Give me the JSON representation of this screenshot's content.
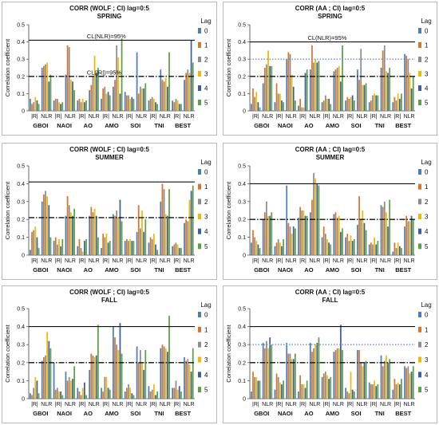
{
  "chart_data": [
    {
      "type": "bar",
      "title": "CORR (WOLF ; CI) lag=0:5",
      "subtitle": "SPRING",
      "ylabel": "Correlation coefficient",
      "ylim": [
        0,
        0.5
      ],
      "yticks": [
        "0",
        "0.1",
        "0.2",
        "0.3",
        "0.4",
        "0.5"
      ],
      "categories": [
        "|R|",
        "NLR",
        "|R|",
        "NLR",
        "|R|",
        "NLR",
        "|R|",
        "NLR",
        "|R|",
        "NLR",
        "|R|",
        "NLR",
        "|R|",
        "NLR"
      ],
      "groups": [
        "GBOI",
        "NAOI",
        "AO",
        "AMO",
        "SOI",
        "TNI",
        "BEST"
      ],
      "legend_title": "Lag",
      "thresholds": [
        {
          "label": "CL(NLR)=95%",
          "value": 0.41,
          "style": "solid"
        },
        {
          "label": "CL(|R|)=95%",
          "value": 0.2,
          "style": "dashdot"
        }
      ],
      "series": [
        {
          "name": "0",
          "values": [
            0.07,
            0.25,
            0.06,
            0.21,
            0.06,
            0.12,
            0.07,
            0.14,
            0.11,
            0.34,
            0.06,
            0.24,
            0.06,
            0.18
          ]
        },
        {
          "name": "1",
          "values": [
            0.04,
            0.26,
            0.07,
            0.38,
            0.07,
            0.15,
            0.13,
            0.18,
            0.09,
            0.1,
            0.07,
            0.18,
            0.05,
            0.22
          ]
        },
        {
          "name": "2",
          "values": [
            0.05,
            0.27,
            0.07,
            0.37,
            0.05,
            0.2,
            0.14,
            0.38,
            0.09,
            0.14,
            0.08,
            0.17,
            0.07,
            0.24
          ]
        },
        {
          "name": "3",
          "values": [
            0.08,
            0.28,
            0.05,
            0.18,
            0.07,
            0.32,
            0.1,
            0.31,
            0.07,
            0.13,
            0.07,
            0.19,
            0.06,
            0.22
          ]
        },
        {
          "name": "4",
          "values": [
            0.06,
            0.17,
            0.04,
            0.17,
            0.05,
            0.22,
            0.11,
            0.1,
            0.08,
            0.13,
            0.05,
            0.14,
            0.04,
            0.41
          ]
        },
        {
          "name": "5",
          "values": [
            0.04,
            0.21,
            0.05,
            0.12,
            0.06,
            0.25,
            0.09,
            0.42,
            0.07,
            0.16,
            0.04,
            0.34,
            0.04,
            0.28
          ]
        }
      ]
    },
    {
      "type": "bar",
      "title": "CORR (AA ; CI) lag=0:5",
      "subtitle": "SPRING",
      "ylabel": "Correlation coefficient",
      "ylim": [
        0,
        0.5
      ],
      "yticks": [
        "0",
        "0.1",
        "0.2",
        "0.3",
        "0.4",
        "0.5"
      ],
      "categories": [
        "|R|",
        "NLR",
        "|R|",
        "NLR",
        "|R|",
        "NLR",
        "|R|",
        "NLR",
        "|R|",
        "NLR",
        "|R|",
        "NLR",
        "|R|",
        "NLR"
      ],
      "groups": [
        "GBOI",
        "NAOI",
        "AO",
        "AMO",
        "SOI",
        "TNI",
        "BEST"
      ],
      "legend_title": "Lag",
      "thresholds": [
        {
          "label": "CL(NLR)=95%",
          "value": 0.4,
          "style": "solid"
        },
        {
          "label": "",
          "value": 0.3,
          "style": "dotted"
        },
        {
          "label": "",
          "value": 0.2,
          "style": "dashdot"
        }
      ],
      "series": [
        {
          "name": "0",
          "values": [
            0.04,
            0.16,
            0.05,
            0.3,
            0.03,
            0.24,
            0.05,
            0.23,
            0.06,
            0.24,
            0.05,
            0.25,
            0.05,
            0.33
          ]
        },
        {
          "name": "1",
          "values": [
            0.13,
            0.25,
            0.16,
            0.34,
            0.07,
            0.38,
            0.06,
            0.24,
            0.08,
            0.18,
            0.06,
            0.35,
            0.08,
            0.32
          ]
        },
        {
          "name": "2",
          "values": [
            0.08,
            0.27,
            0.1,
            0.33,
            0.02,
            0.28,
            0.09,
            0.25,
            0.07,
            0.36,
            0.09,
            0.38,
            0.06,
            0.3
          ]
        },
        {
          "name": "3",
          "values": [
            0.11,
            0.35,
            0.1,
            0.21,
            0.02,
            0.3,
            0.07,
            0.26,
            0.08,
            0.15,
            0.1,
            0.23,
            0.1,
            0.22
          ]
        },
        {
          "name": "4",
          "values": [
            0.05,
            0.26,
            0.06,
            0.14,
            0.22,
            0.28,
            0.07,
            0.17,
            0.09,
            0.15,
            0.09,
            0.22,
            0.07,
            0.13
          ]
        },
        {
          "name": "5",
          "values": [
            0.02,
            0.26,
            0.05,
            0.06,
            0.24,
            0.29,
            0.04,
            0.38,
            0.06,
            0.16,
            0.09,
            0.25,
            0.1,
            0.2
          ]
        }
      ]
    },
    {
      "type": "bar",
      "title": "CORR (WOLF ; CI) lag=0:5",
      "subtitle": "SUMMER",
      "ylabel": "Correlation coefficient",
      "ylim": [
        0,
        0.5
      ],
      "yticks": [
        "0",
        "0.1",
        "0.2",
        "0.3",
        "0.4",
        "0.5"
      ],
      "categories": [
        "|R|",
        "NLR",
        "|R|",
        "NLR",
        "|R|",
        "NLR",
        "|R|",
        "NLR",
        "|R|",
        "NLR",
        "|R|",
        "NLR",
        "|R|",
        "NLR"
      ],
      "groups": [
        "GBOI",
        "NAOI",
        "AO",
        "AMO",
        "SOI",
        "TNI",
        "BEST"
      ],
      "legend_title": "Lag",
      "thresholds": [
        {
          "label": "",
          "value": 0.41,
          "style": "solid"
        },
        {
          "label": "",
          "value": 0.21,
          "style": "dashdot"
        }
      ],
      "series": [
        {
          "name": "0",
          "values": [
            0.03,
            0.3,
            0.08,
            0.22,
            0.05,
            0.22,
            0.04,
            0.23,
            0.08,
            0.13,
            0.07,
            0.3,
            0.05,
            0.18
          ]
        },
        {
          "name": "1",
          "values": [
            0.13,
            0.34,
            0.1,
            0.33,
            0.09,
            0.27,
            0.12,
            0.22,
            0.09,
            0.28,
            0.1,
            0.4,
            0.06,
            0.2
          ]
        },
        {
          "name": "2",
          "values": [
            0.14,
            0.36,
            0.06,
            0.28,
            0.04,
            0.24,
            0.1,
            0.25,
            0.08,
            0.15,
            0.09,
            0.37,
            0.07,
            0.19
          ]
        },
        {
          "name": "3",
          "values": [
            0.16,
            0.33,
            0.09,
            0.24,
            0.02,
            0.26,
            0.12,
            0.21,
            0.09,
            0.25,
            0.12,
            0.23,
            0.06,
            0.31
          ]
        },
        {
          "name": "4",
          "values": [
            0.1,
            0.28,
            0.05,
            0.22,
            0.08,
            0.22,
            0.07,
            0.31,
            0.08,
            0.13,
            0.06,
            0.22,
            0.04,
            0.36
          ]
        },
        {
          "name": "5",
          "values": [
            0.04,
            0.1,
            0.09,
            0.26,
            0.09,
            0.1,
            0.08,
            0.19,
            0.08,
            0.2,
            0.03,
            0.37,
            0.04,
            0.39
          ]
        }
      ]
    },
    {
      "type": "bar",
      "title": "CORR (AA ; CI) lag=0:5",
      "subtitle": "SUMMER",
      "ylabel": "Correlation coefficient",
      "ylim": [
        0,
        0.5
      ],
      "yticks": [
        "0",
        "0.1",
        "0.2",
        "0.3",
        "0.4",
        "0.5"
      ],
      "categories": [
        "|R|",
        "NLR",
        "|R|",
        "NLR",
        "|R|",
        "NLR",
        "|R|",
        "NLR",
        "|R|",
        "NLR",
        "|R|",
        "NLR",
        "|R|",
        "NLR"
      ],
      "groups": [
        "GBOI",
        "NAOI",
        "AO",
        "AMO",
        "SOI",
        "TNI",
        "BEST"
      ],
      "legend_title": "Lag",
      "thresholds": [
        {
          "label": "",
          "value": 0.4,
          "style": "solid"
        },
        {
          "label": "",
          "value": 0.2,
          "style": "dashdot"
        }
      ],
      "series": [
        {
          "name": "0",
          "values": [
            0.07,
            0.2,
            0.05,
            0.39,
            0.21,
            0.24,
            0.1,
            0.23,
            0.1,
            0.17,
            0.06,
            0.28,
            0.02,
            0.16
          ]
        },
        {
          "name": "1",
          "values": [
            0.14,
            0.24,
            0.07,
            0.18,
            0.27,
            0.31,
            0.16,
            0.24,
            0.12,
            0.33,
            0.07,
            0.27,
            0.07,
            0.22
          ]
        },
        {
          "name": "2",
          "values": [
            0.1,
            0.3,
            0.09,
            0.16,
            0.25,
            0.46,
            0.12,
            0.21,
            0.08,
            0.2,
            0.06,
            0.3,
            0.04,
            0.19
          ]
        },
        {
          "name": "3",
          "values": [
            0.08,
            0.22,
            0.07,
            0.12,
            0.25,
            0.43,
            0.09,
            0.22,
            0.11,
            0.25,
            0.1,
            0.24,
            0.07,
            0.19
          ]
        },
        {
          "name": "4",
          "values": [
            0.06,
            0.22,
            0.05,
            0.16,
            0.22,
            0.4,
            0.07,
            0.13,
            0.08,
            0.18,
            0.06,
            0.16,
            0.05,
            0.22
          ]
        },
        {
          "name": "5",
          "values": [
            0.04,
            0.24,
            0.09,
            0.15,
            0.22,
            0.39,
            0.06,
            0.15,
            0.09,
            0.14,
            0.08,
            0.31,
            0.04,
            0.2
          ]
        }
      ]
    },
    {
      "type": "bar",
      "title": "CORR (WOLF ; CI) lag=0:5",
      "subtitle": "FALL",
      "ylabel": "Correlation coefficient",
      "ylim": [
        0,
        0.5
      ],
      "yticks": [
        "0",
        "0.1",
        "0.2",
        "0.3",
        "0.4",
        "0.5"
      ],
      "categories": [
        "|R|",
        "NLR",
        "|R|",
        "NLR",
        "|R|",
        "NLR",
        "|R|",
        "NLR",
        "|R|",
        "NLR",
        "|R|",
        "NLR",
        "|R|",
        "NLR"
      ],
      "groups": [
        "GBOI",
        "NAOI",
        "AO",
        "AMO",
        "SOI",
        "TNI",
        "BEST"
      ],
      "legend_title": "Lag",
      "thresholds": [
        {
          "label": "",
          "value": 0.4,
          "style": "solid"
        },
        {
          "label": "",
          "value": 0.2,
          "style": "dashdot"
        }
      ],
      "series": [
        {
          "name": "0",
          "values": [
            0.03,
            0.21,
            0.2,
            0.15,
            0.06,
            0.16,
            0.06,
            0.4,
            0.04,
            0.29,
            0.07,
            0.28,
            0.06,
            0.23
          ]
        },
        {
          "name": "1",
          "values": [
            0.02,
            0.23,
            0.05,
            0.1,
            0.04,
            0.25,
            0.04,
            0.34,
            0.06,
            0.2,
            0.04,
            0.3,
            0.06,
            0.21
          ]
        },
        {
          "name": "2",
          "values": [
            0.06,
            0.24,
            0.06,
            0.12,
            0.02,
            0.24,
            0.12,
            0.3,
            0.08,
            0.27,
            0.05,
            0.29,
            0.1,
            0.22
          ]
        },
        {
          "name": "3",
          "values": [
            0.12,
            0.37,
            0.04,
            0.1,
            0.06,
            0.23,
            0.12,
            0.27,
            0.06,
            0.2,
            0.08,
            0.28,
            0.05,
            0.19
          ]
        },
        {
          "name": "4",
          "values": [
            0.1,
            0.32,
            0.04,
            0.11,
            0.09,
            0.24,
            0.06,
            0.42,
            0.03,
            0.16,
            0.02,
            0.26,
            0.07,
            0.15
          ]
        },
        {
          "name": "5",
          "values": [
            0.03,
            0.28,
            0.02,
            0.18,
            0.02,
            0.41,
            0.05,
            0.25,
            0.02,
            0.27,
            0.04,
            0.46,
            0.04,
            0.28
          ]
        }
      ]
    },
    {
      "type": "bar",
      "title": "CORR (AA ; CI) lag=0:5",
      "subtitle": "FALL",
      "ylabel": "Correlation coefficient",
      "ylim": [
        0,
        0.5
      ],
      "yticks": [
        "0",
        "0.1",
        "0.2",
        "0.3",
        "0.4",
        "0.5"
      ],
      "categories": [
        "|R|",
        "NLR",
        "|R|",
        "NLR",
        "|R|",
        "NLR",
        "|R|",
        "NLR",
        "|R|",
        "NLR",
        "|R|",
        "NLR",
        "|R|",
        "NLR"
      ],
      "groups": [
        "GBOI",
        "NAOI",
        "AO",
        "AMO",
        "SOI",
        "TNI",
        "BEST"
      ],
      "legend_title": "Lag",
      "thresholds": [
        {
          "label": "",
          "value": 0.4,
          "style": "solid"
        },
        {
          "label": "",
          "value": 0.3,
          "style": "dotted"
        },
        {
          "label": "",
          "value": 0.2,
          "style": "dashdot"
        }
      ],
      "series": [
        {
          "name": "0",
          "values": [
            0.04,
            0.31,
            0.05,
            0.31,
            0.04,
            0.31,
            0.12,
            0.26,
            0.06,
            0.27,
            0.09,
            0.24,
            0.05,
            0.18
          ]
        },
        {
          "name": "1",
          "values": [
            0.15,
            0.28,
            0.14,
            0.25,
            0.13,
            0.26,
            0.14,
            0.27,
            0.04,
            0.27,
            0.08,
            0.18,
            0.11,
            0.17
          ]
        },
        {
          "name": "2",
          "values": [
            0.12,
            0.32,
            0.12,
            0.25,
            0.08,
            0.28,
            0.15,
            0.28,
            0.03,
            0.2,
            0.08,
            0.21,
            0.08,
            0.18
          ]
        },
        {
          "name": "3",
          "values": [
            0.12,
            0.28,
            0.09,
            0.22,
            0.08,
            0.3,
            0.13,
            0.28,
            0.15,
            0.18,
            0.1,
            0.24,
            0.09,
            0.14
          ]
        },
        {
          "name": "4",
          "values": [
            0.1,
            0.34,
            0.08,
            0.22,
            0.06,
            0.31,
            0.11,
            0.41,
            0.05,
            0.2,
            0.07,
            0.2,
            0.08,
            0.15
          ]
        },
        {
          "name": "5",
          "values": [
            0.1,
            0.3,
            0.1,
            0.25,
            0.1,
            0.34,
            0.12,
            0.27,
            0.04,
            0.21,
            0.08,
            0.22,
            0.11,
            0.18
          ]
        }
      ]
    }
  ],
  "series_colors": [
    "#4a7ebb",
    "#d9742b",
    "#8c8c8c",
    "#f2b800",
    "#3a5fa0",
    "#5aa046"
  ]
}
